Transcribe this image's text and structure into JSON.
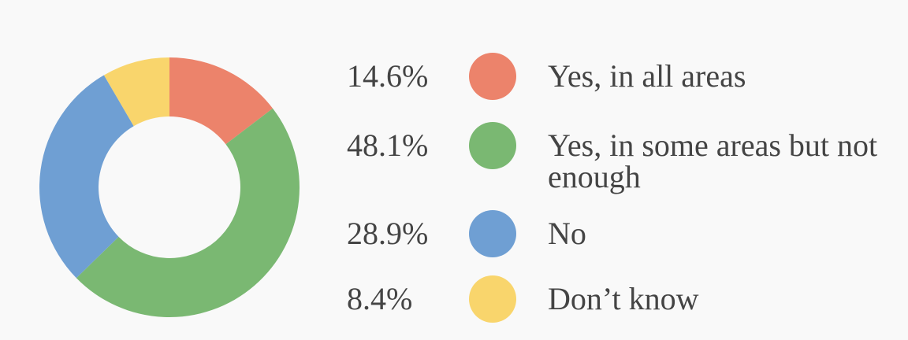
{
  "chart_data": {
    "type": "pie",
    "categories": [
      "Yes, in all areas",
      "Yes, in some areas but not enough",
      "No",
      "Don’t know"
    ],
    "values": [
      14.6,
      48.1,
      28.9,
      8.4
    ],
    "value_labels": [
      "14.6%",
      "48.1%",
      "28.9%",
      "8.4%"
    ],
    "colors": [
      "#ec836b",
      "#7ab872",
      "#6f9fd3",
      "#f9d56c"
    ]
  }
}
